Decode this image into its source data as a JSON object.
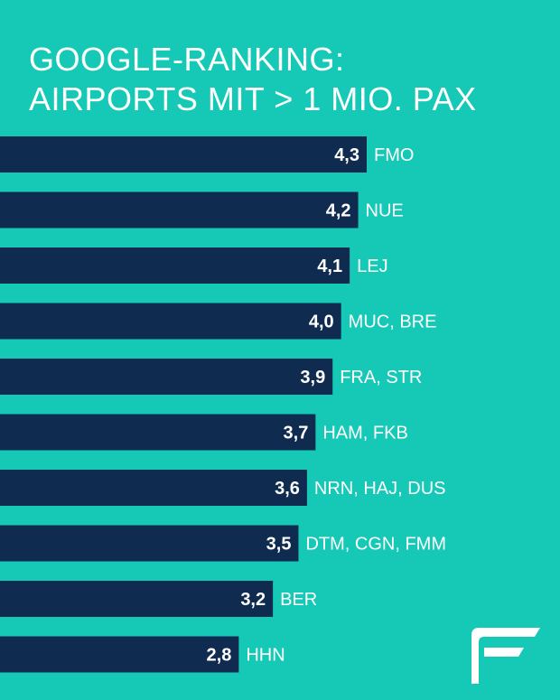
{
  "colors": {
    "background": "#16c9b7",
    "bar": "#0f2b50",
    "text": "#ffffff"
  },
  "logo_icon": "stylized-F-logo-icon",
  "chart_data": {
    "type": "bar",
    "orientation": "horizontal",
    "title_lines": [
      "GOOGLE-RANKING:",
      "AIRPORTS MIT > 1 MIO. PAX"
    ],
    "categories": [
      "FMO",
      "NUE",
      "LEJ",
      "MUC, BRE",
      "FRA, STR",
      "HAM, FKB",
      "NRN, HAJ, DUS",
      "DTM, CGN, FMM",
      "BER",
      "HHN"
    ],
    "values": [
      4.3,
      4.2,
      4.1,
      4.0,
      3.9,
      3.7,
      3.6,
      3.5,
      3.2,
      2.8
    ],
    "value_labels": [
      "4,3",
      "4,2",
      "4,1",
      "4,0",
      "3,9",
      "3,7",
      "3,6",
      "3,5",
      "3,2",
      "2,8"
    ],
    "grid": false,
    "legend": "none",
    "axes_visible": false
  }
}
